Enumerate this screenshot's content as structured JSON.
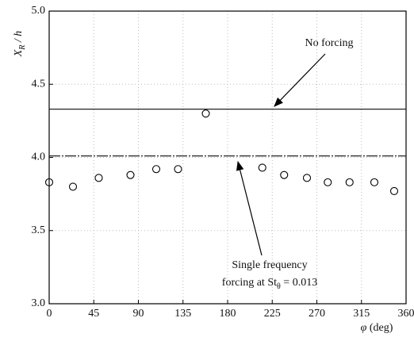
{
  "chart_data": {
    "type": "scatter",
    "xlabel": {
      "symbol": "φ",
      "rest": " (deg)"
    },
    "ylabel": {
      "main": "X",
      "sub": "R",
      "rest": " / h"
    },
    "x": [
      0,
      24,
      50,
      82,
      108,
      130,
      158,
      215,
      237,
      260,
      281,
      303,
      328,
      348
    ],
    "values": [
      3.83,
      3.8,
      3.86,
      3.88,
      3.92,
      3.92,
      4.3,
      3.93,
      3.88,
      3.86,
      3.83,
      3.83,
      3.83,
      3.77
    ],
    "xlim": [
      0,
      360
    ],
    "ylim": [
      3.0,
      5.0
    ],
    "xticks": [
      0,
      45,
      90,
      135,
      180,
      225,
      270,
      315,
      360
    ],
    "yticks": [
      {
        "value": 3.0,
        "label": "3.0"
      },
      {
        "value": 3.5,
        "label": "3.5"
      },
      {
        "value": 4.0,
        "label": "4.0"
      },
      {
        "value": 4.5,
        "label": "4.5"
      },
      {
        "value": 5.0,
        "label": "5.0"
      }
    ],
    "grid": true,
    "reference_lines": [
      {
        "value": 4.33,
        "label": [
          "No forcing"
        ]
      },
      {
        "value": 4.01,
        "label": [
          "Single frequency",
          {
            "main": "forcing at St",
            "sub": "θ",
            "rest": " = 0.013"
          }
        ]
      }
    ]
  }
}
